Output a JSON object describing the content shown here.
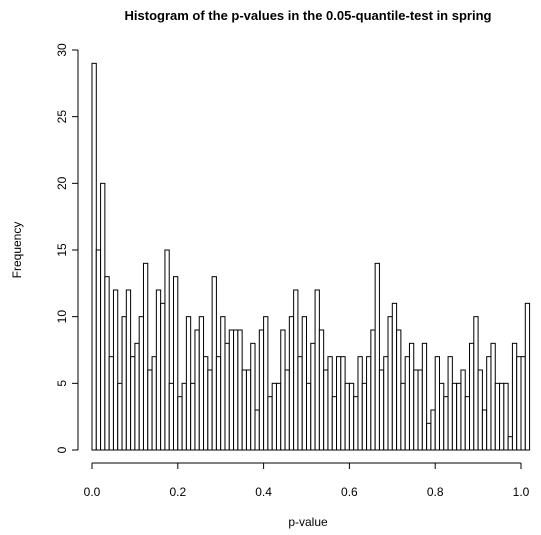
{
  "chart_data": {
    "type": "bar",
    "title": "Histogram of the p-values in the 0.05-quantile-test in spring",
    "xlabel": "p-value",
    "ylabel": "Frequency",
    "xlim": [
      0,
      1
    ],
    "ylim": [
      0,
      30
    ],
    "bin_width": 0.01,
    "bin_start": 0,
    "x_ticks": [
      "0.0",
      "0.2",
      "0.4",
      "0.6",
      "0.8",
      "1.0"
    ],
    "y_ticks": [
      "0",
      "5",
      "10",
      "15",
      "20",
      "25",
      "30"
    ],
    "values": [
      29,
      15,
      20,
      13,
      7,
      12,
      5,
      10,
      12,
      7,
      8,
      10,
      14,
      6,
      7,
      12,
      11,
      15,
      5,
      13,
      4,
      5,
      10,
      5,
      9,
      10,
      7,
      6,
      13,
      7,
      10,
      8,
      9,
      9,
      9,
      6,
      6,
      8,
      3,
      9,
      10,
      4,
      5,
      5,
      9,
      6,
      10,
      12,
      7,
      10,
      5,
      8,
      12,
      9,
      6,
      7,
      4,
      7,
      7,
      5,
      5,
      4,
      7,
      5,
      7,
      9,
      14,
      6,
      7,
      10,
      11,
      9,
      5,
      7,
      8,
      6,
      6,
      8,
      2,
      3,
      7,
      5,
      4,
      7,
      5,
      5,
      6,
      4,
      8,
      10,
      6,
      3,
      7,
      8,
      5,
      5,
      5,
      1,
      8,
      7,
      7,
      11
    ]
  }
}
